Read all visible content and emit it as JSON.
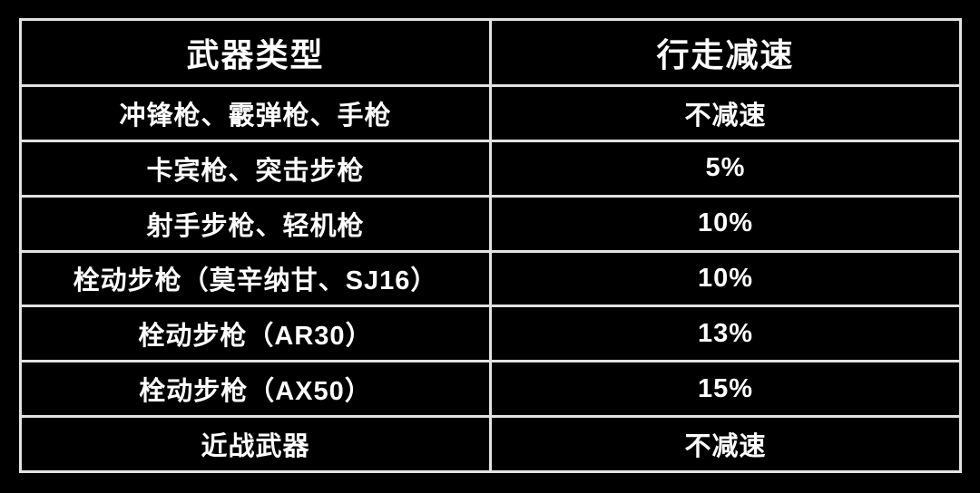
{
  "colors": {
    "background": "#000000",
    "grid_line": "#e2e2e2",
    "text": "#ffffff"
  },
  "chart_data": {
    "type": "table",
    "title": "",
    "columns": [
      "武器类型",
      "行走减速"
    ],
    "rows": [
      [
        "冲锋枪、霰弹枪、手枪",
        "不减速"
      ],
      [
        "卡宾枪、突击步枪",
        "5%"
      ],
      [
        "射手步枪、轻机枪",
        "10%"
      ],
      [
        "栓动步枪（莫辛纳甘、SJ16）",
        "10%"
      ],
      [
        "栓动步枪（AR30）",
        "13%"
      ],
      [
        "栓动步枪（AX50）",
        "15%"
      ],
      [
        "近战武器",
        "不减速"
      ]
    ],
    "layout": {
      "grid": "on",
      "header_row": true,
      "column_split": "50/50"
    }
  }
}
